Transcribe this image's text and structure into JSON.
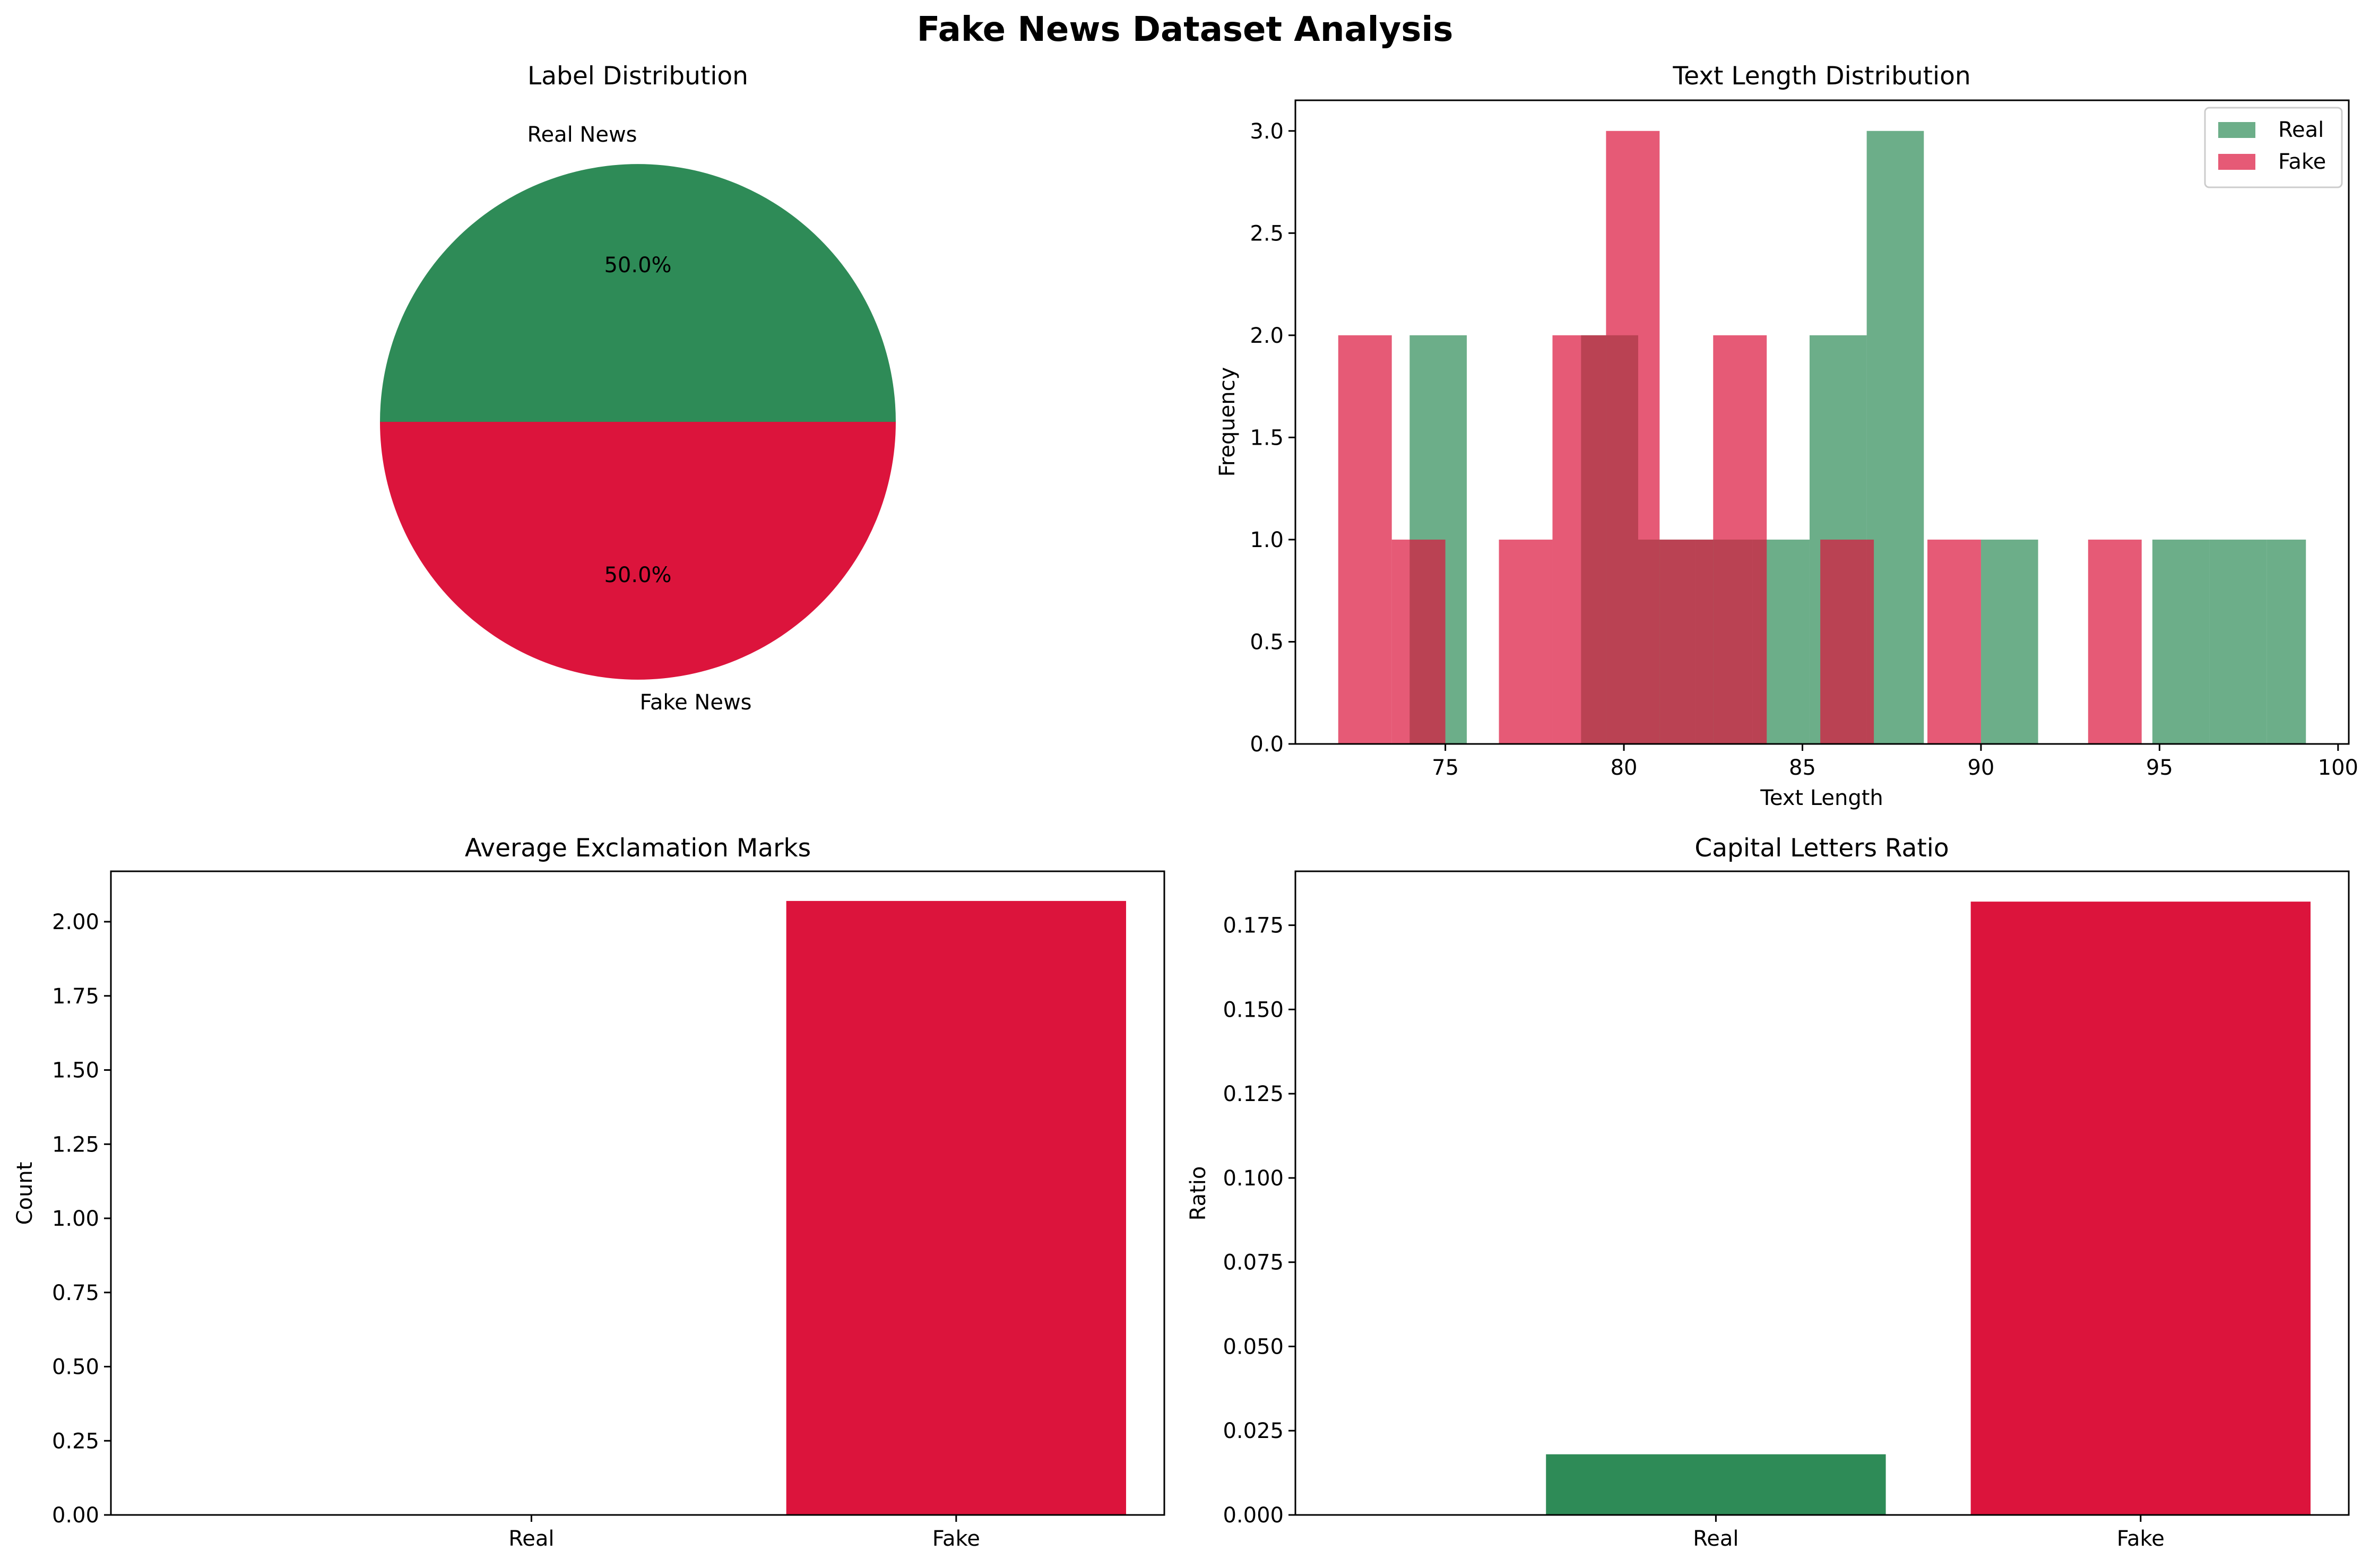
{
  "suptitle": "Fake News Dataset Analysis",
  "colors": {
    "real": "#2e8b57",
    "fake": "#dc143c"
  },
  "chart_data": [
    {
      "type": "pie",
      "title": "Label Distribution",
      "labels": [
        "Real News",
        "Fake News"
      ],
      "values": [
        50,
        50
      ],
      "pct_labels": [
        "50.0%",
        "50.0%"
      ],
      "colors": [
        "#2e8b57",
        "#dc143c"
      ]
    },
    {
      "type": "bar",
      "subtype": "histogram",
      "title": "Text Length Distribution",
      "xlabel": "Text Length",
      "ylabel": "Frequency",
      "xlim": [
        70.8,
        100.3
      ],
      "ylim": [
        0,
        3.15
      ],
      "xticks": [
        75,
        80,
        85,
        90,
        95,
        100
      ],
      "yticks": [
        0.0,
        0.5,
        1.0,
        1.5,
        2.0,
        2.5,
        3.0
      ],
      "legend": "top-right",
      "alpha": 0.7,
      "series": [
        {
          "name": "Real",
          "color": "#2e8b57",
          "bins": [
            [
              74.0,
              75.6,
              2
            ],
            [
              75.6,
              77.2,
              0
            ],
            [
              77.2,
              78.8,
              0
            ],
            [
              78.8,
              80.4,
              2
            ],
            [
              80.4,
              82.0,
              1
            ],
            [
              82.0,
              83.6,
              1
            ],
            [
              83.6,
              85.2,
              1
            ],
            [
              85.2,
              86.8,
              2
            ],
            [
              86.8,
              88.4,
              3
            ],
            [
              88.4,
              90.0,
              0
            ],
            [
              90.0,
              91.6,
              1
            ],
            [
              91.6,
              93.2,
              0
            ],
            [
              93.2,
              94.8,
              0
            ],
            [
              94.8,
              96.4,
              1
            ],
            [
              96.4,
              98.0,
              1
            ],
            [
              98.0,
              99.1,
              1
            ]
          ]
        },
        {
          "name": "Fake",
          "color": "#dc143c",
          "bins": [
            [
              72.0,
              73.5,
              2
            ],
            [
              73.5,
              75.0,
              1
            ],
            [
              75.0,
              76.5,
              0
            ],
            [
              76.5,
              78.0,
              1
            ],
            [
              78.0,
              79.5,
              2
            ],
            [
              79.5,
              81.0,
              3
            ],
            [
              81.0,
              82.5,
              1
            ],
            [
              82.5,
              84.0,
              2
            ],
            [
              84.0,
              85.5,
              0
            ],
            [
              85.5,
              87.0,
              1
            ],
            [
              87.0,
              88.5,
              0
            ],
            [
              88.5,
              90.0,
              1
            ],
            [
              90.0,
              91.5,
              0
            ],
            [
              91.5,
              93.0,
              0
            ],
            [
              93.0,
              94.5,
              1
            ],
            [
              94.5,
              96.0,
              0
            ]
          ]
        }
      ]
    },
    {
      "type": "bar",
      "title": "Average Exclamation Marks",
      "ylabel": "Count",
      "categories": [
        "Real",
        "Fake"
      ],
      "values": [
        0.0,
        2.07
      ],
      "colors": [
        "#2e8b57",
        "#dc143c"
      ],
      "ylim": [
        0,
        2.17
      ],
      "yticks": [
        0.0,
        0.25,
        0.5,
        0.75,
        1.0,
        1.25,
        1.5,
        1.75,
        2.0
      ],
      "ytick_labels": [
        "0.00",
        "0.25",
        "0.50",
        "0.75",
        "1.00",
        "1.25",
        "1.50",
        "1.75",
        "2.00"
      ]
    },
    {
      "type": "bar",
      "title": "Capital Letters Ratio",
      "ylabel": "Ratio",
      "categories": [
        "Real",
        "Fake"
      ],
      "values": [
        0.018,
        0.182
      ],
      "colors": [
        "#2e8b57",
        "#dc143c"
      ],
      "ylim": [
        0,
        0.191
      ],
      "yticks": [
        0.0,
        0.025,
        0.05,
        0.075,
        0.1,
        0.125,
        0.15,
        0.175
      ],
      "ytick_labels": [
        "0.000",
        "0.025",
        "0.050",
        "0.075",
        "0.100",
        "0.125",
        "0.150",
        "0.175"
      ]
    }
  ]
}
